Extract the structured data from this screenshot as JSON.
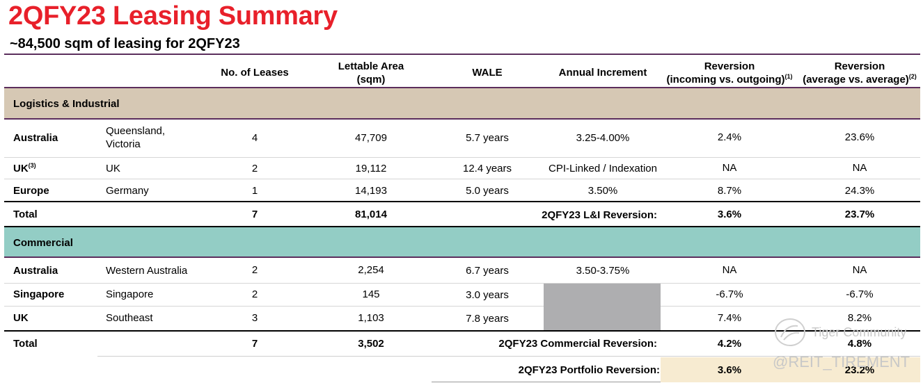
{
  "title": "2QFY23 Leasing Summary",
  "subtitle": "~84,500 sqm of leasing for 2QFY23",
  "header": {
    "leases": "No. of Leases",
    "area_l1": "Lettable Area",
    "area_l2": "(sqm)",
    "wale": "WALE",
    "increment": "Annual Increment",
    "rev1_l1": "Reversion",
    "rev1_l2": "(incoming vs. outgoing)",
    "rev1_sup": "(1)",
    "rev2_l1": "Reversion",
    "rev2_l2": "(average vs. average)",
    "rev2_sup": "(2)"
  },
  "colors": {
    "title": "#e8202a",
    "li_band": "#d6c8b4",
    "commercial_band": "#93cdc5",
    "divider": "#5b2d5c",
    "portfolio_highlight": "#f7ebd1",
    "na_block": "#aeaeb0"
  },
  "sections": {
    "li": {
      "label": "Logistics & Industrial",
      "rows": [
        {
          "country": "Australia",
          "country_sup": "",
          "location_l1": "Queensland,",
          "location_l2": "Victoria",
          "leases": "4",
          "area": "47,709",
          "wale": "5.7 years",
          "increment": "3.25-4.00%",
          "rev1": "2.4%",
          "rev2": "23.6%"
        },
        {
          "country": "UK",
          "country_sup": "(3)",
          "location_l1": "UK",
          "location_l2": "",
          "leases": "2",
          "area": "19,112",
          "wale": "12.4 years",
          "increment": "CPI-Linked / Indexation",
          "rev1": "NA",
          "rev2": "NA"
        },
        {
          "country": "Europe",
          "country_sup": "",
          "location_l1": "Germany",
          "location_l2": "",
          "leases": "1",
          "area": "14,193",
          "wale": "5.0 years",
          "increment": "3.50%",
          "rev1": "8.7%",
          "rev2": "24.3%"
        }
      ],
      "total": {
        "label": "Total",
        "leases": "7",
        "area": "81,014",
        "reversion_label": "2QFY23 L&I Reversion:",
        "rev1": "3.6%",
        "rev2": "23.7%"
      }
    },
    "commercial": {
      "label": "Commercial",
      "rows": [
        {
          "country": "Australia",
          "location": "Western Australia",
          "leases": "2",
          "area": "2,254",
          "wale": "6.7 years",
          "increment": "3.50-3.75%",
          "rev1": "NA",
          "rev2": "NA"
        },
        {
          "country": "Singapore",
          "location": "Singapore",
          "leases": "2",
          "area": "145",
          "wale": "3.0 years",
          "increment": "",
          "rev1": "-6.7%",
          "rev2": "-6.7%"
        },
        {
          "country": "UK",
          "location": "Southeast",
          "leases": "3",
          "area": "1,103",
          "wale": "7.8 years",
          "increment": "",
          "rev1": "7.4%",
          "rev2": "8.2%"
        }
      ],
      "total": {
        "label": "Total",
        "leases": "7",
        "area": "3,502",
        "reversion_label": "2QFY23 Commercial Reversion:",
        "rev1": "4.2%",
        "rev2": "4.8%"
      }
    }
  },
  "portfolio": {
    "label": "2QFY23 Portfolio Reversion:",
    "rev1": "3.6%",
    "rev2": "23.2%"
  },
  "watermark": {
    "line1": "Tiger Community",
    "line2": "@REIT_TIREMENT"
  }
}
